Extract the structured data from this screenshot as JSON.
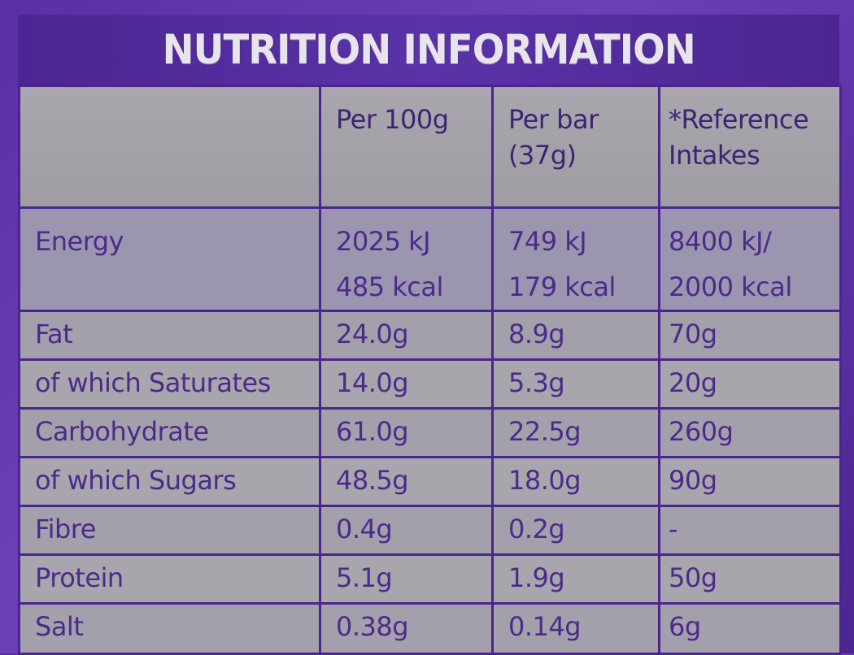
{
  "title": "NUTRITION INFORMATION",
  "headers": {
    "per100g": "Per 100g",
    "perbar_line1": "Per bar",
    "perbar_line2": "(37g)",
    "ref_line1": "*Reference",
    "ref_line2": "Intakes"
  },
  "energy": {
    "label": "Energy",
    "per100g_kj": "2025 kJ",
    "per100g_kcal": "485 kcal",
    "perbar_kj": "749 kJ",
    "perbar_kcal": "179 kcal",
    "ref_kj": "8400 kJ/",
    "ref_kcal": "2000 kcal"
  },
  "rows": [
    {
      "label": "Fat",
      "per100g": "24.0g",
      "perbar": "8.9g",
      "ref": "70g"
    },
    {
      "label": "of which Saturates",
      "per100g": "14.0g",
      "perbar": "5.3g",
      "ref": "20g"
    },
    {
      "label": "Carbohydrate",
      "per100g": "61.0g",
      "perbar": "22.5g",
      "ref": "260g"
    },
    {
      "label": "of which Sugars",
      "per100g": "48.5g",
      "perbar": "18.0g",
      "ref": "90g"
    },
    {
      "label": "Fibre",
      "per100g": "0.4g",
      "perbar": "0.2g",
      "ref": "-"
    },
    {
      "label": "Protein",
      "per100g": "5.1g",
      "perbar": "1.9g",
      "ref": "50g"
    },
    {
      "label": "Salt",
      "per100g": "0.38g",
      "perbar": "0.14g",
      "ref": "6g"
    }
  ],
  "colors": {
    "purple": "#4a2590",
    "panel_grey": "#a8a5ac",
    "text_purple": "#4b2a8a",
    "title_text": "#e8e4ee"
  }
}
